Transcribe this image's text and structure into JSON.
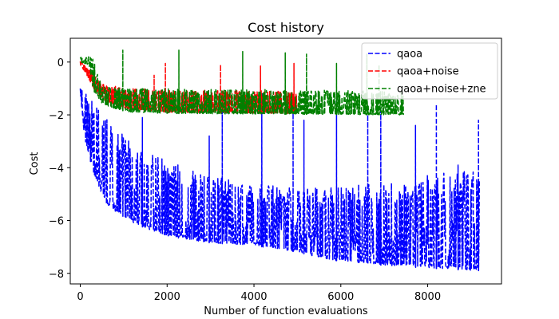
{
  "chart_data": {
    "type": "line",
    "title": "Cost history",
    "xlabel": "Number of function evaluations",
    "ylabel": "Cost",
    "xlim": [
      -230,
      9700
    ],
    "ylim": [
      -8.4,
      0.9
    ],
    "xticks": [
      0,
      2000,
      4000,
      6000,
      8000
    ],
    "yticks": [
      -8,
      -6,
      -4,
      -2,
      0
    ],
    "xtick_labels": [
      "0",
      "2000",
      "4000",
      "6000",
      "8000"
    ],
    "ytick_labels": [
      "−8",
      "−6",
      "−4",
      "−2",
      "0"
    ],
    "grid": false,
    "legend_position": "top-right",
    "series": [
      {
        "name": "qaoa",
        "color": "#0000ff",
        "dash": "dashed",
        "x_range": [
          0,
          9200
        ],
        "baseline": [
          [
            0,
            -1.1
          ],
          [
            30,
            -1.7
          ],
          [
            100,
            -2.9
          ],
          [
            300,
            -4.3
          ],
          [
            600,
            -5.4
          ],
          [
            1000,
            -5.9
          ],
          [
            1500,
            -6.3
          ],
          [
            2000,
            -6.6
          ],
          [
            3000,
            -6.85
          ],
          [
            4000,
            -6.95
          ],
          [
            5000,
            -7.2
          ],
          [
            5500,
            -7.4
          ],
          [
            6000,
            -7.55
          ],
          [
            7000,
            -7.7
          ],
          [
            8000,
            -7.8
          ],
          [
            9200,
            -7.9
          ]
        ],
        "upper_envelope": [
          [
            0,
            -1.0
          ],
          [
            500,
            -1.8
          ],
          [
            1000,
            -2.8
          ],
          [
            1500,
            -3.4
          ],
          [
            2000,
            -3.7
          ],
          [
            3000,
            -4.3
          ],
          [
            4000,
            -4.6
          ],
          [
            5000,
            -4.8
          ],
          [
            6000,
            -4.7
          ],
          [
            7000,
            -4.5
          ],
          [
            8000,
            -4.3
          ],
          [
            9200,
            -4.0
          ]
        ],
        "spikes": [
          [
            1430,
            -2.1
          ],
          [
            2970,
            -2.8
          ],
          [
            3270,
            -1.6
          ],
          [
            4180,
            -1.2
          ],
          [
            4900,
            -1.8
          ],
          [
            5150,
            -2.2
          ],
          [
            5900,
            -1.4
          ],
          [
            6620,
            -2.0
          ],
          [
            6920,
            -1.7
          ],
          [
            7720,
            -2.4
          ],
          [
            8200,
            -1.6
          ],
          [
            8700,
            -3.9
          ],
          [
            9170,
            -2.2
          ]
        ]
      },
      {
        "name": "qaoa+noise",
        "color": "#ff0000",
        "dash": "dashed",
        "x_range": [
          0,
          5000
        ],
        "baseline": [
          [
            0,
            -0.1
          ],
          [
            120,
            -0.4
          ],
          [
            300,
            -1.0
          ],
          [
            600,
            -1.5
          ],
          [
            1000,
            -1.75
          ],
          [
            2000,
            -1.9
          ],
          [
            5000,
            -1.95
          ]
        ],
        "upper_envelope": [
          [
            0,
            0.05
          ],
          [
            500,
            -0.8
          ],
          [
            1000,
            -1.0
          ],
          [
            2000,
            -1.05
          ],
          [
            5000,
            -1.1
          ]
        ],
        "spikes": [
          [
            1700,
            -0.5
          ],
          [
            1960,
            -0.05
          ],
          [
            3230,
            -0.1
          ],
          [
            4150,
            -0.15
          ],
          [
            4920,
            -0.05
          ]
        ]
      },
      {
        "name": "qaoa+noise+zne",
        "color": "#008000",
        "dash": "dashed",
        "x_range": [
          0,
          7450
        ],
        "baseline": [
          [
            0,
            0.0
          ],
          [
            200,
            -0.1
          ],
          [
            300,
            -1.1
          ],
          [
            500,
            -1.55
          ],
          [
            800,
            -1.8
          ],
          [
            1200,
            -1.9
          ],
          [
            2000,
            -1.95
          ],
          [
            7450,
            -2.0
          ]
        ],
        "upper_envelope": [
          [
            0,
            0.2
          ],
          [
            300,
            0.2
          ],
          [
            500,
            -0.9
          ],
          [
            1000,
            -1.0
          ],
          [
            2000,
            -1.0
          ],
          [
            7450,
            -1.1
          ]
        ],
        "spikes": [
          [
            980,
            0.45
          ],
          [
            2270,
            0.45
          ],
          [
            3740,
            0.4
          ],
          [
            4720,
            0.35
          ],
          [
            5210,
            0.3
          ],
          [
            5900,
            -0.05
          ],
          [
            6600,
            0.3
          ],
          [
            6880,
            -0.1
          ]
        ]
      }
    ]
  }
}
